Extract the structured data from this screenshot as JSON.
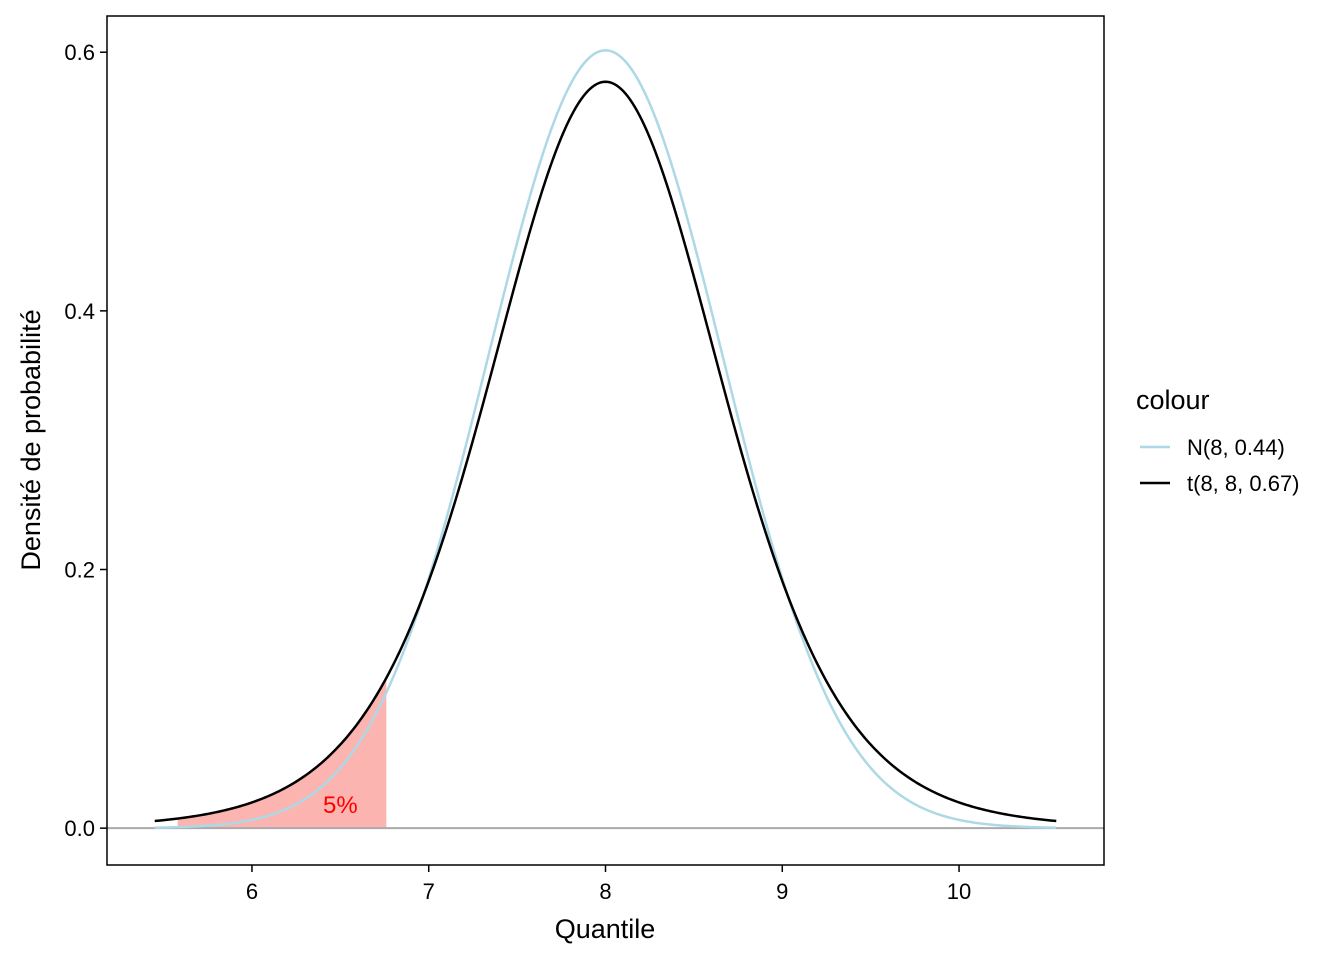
{
  "chart_data": {
    "type": "line",
    "xlabel": "Quantile",
    "ylabel": "Densité de probabilité",
    "xlim": [
      5.18,
      10.82
    ],
    "ylim": [
      -0.0285,
      0.628
    ],
    "x_ticks": [
      "6",
      "7",
      "8",
      "9",
      "10"
    ],
    "x_tick_values": [
      6,
      7,
      8,
      9,
      10
    ],
    "y_ticks": [
      "0.0",
      "0.2",
      "0.4",
      "0.6"
    ],
    "y_tick_values": [
      0.0,
      0.2,
      0.4,
      0.6
    ],
    "grid": false,
    "legend": {
      "title": "colour",
      "position": "right",
      "entries": [
        "N(8, 0.44)",
        "t(8, 8, 0.67)"
      ]
    },
    "series": [
      {
        "name": "N(8, 0.44)",
        "color": "#ADD8E6",
        "distribution": "normal",
        "mean": 8,
        "sd": 0.6633,
        "x_range": [
          5.45,
          10.55
        ],
        "x": [
          5.5,
          5.75,
          6.0,
          6.25,
          6.5,
          6.75,
          7.0,
          7.25,
          7.5,
          7.75,
          8.0,
          8.25,
          8.5,
          8.75,
          9.0,
          9.25,
          9.5,
          9.75,
          10.0,
          10.25,
          10.5
        ],
        "y": [
          0.0052,
          0.0095,
          0.0159,
          0.0283,
          0.0464,
          0.1015,
          0.189,
          0.308,
          0.452,
          0.554,
          0.601,
          0.554,
          0.452,
          0.308,
          0.189,
          0.1015,
          0.0464,
          0.0283,
          0.0159,
          0.0095,
          0.0052
        ]
      },
      {
        "name": "t(8, 8, 0.67)",
        "color": "#000000",
        "distribution": "student_t",
        "df": 8,
        "location": 8,
        "scale": 0.67,
        "x_range": [
          5.45,
          10.55
        ],
        "x": [
          5.5,
          5.75,
          6.0,
          6.25,
          6.5,
          6.75,
          7.0,
          7.25,
          7.5,
          7.75,
          8.0,
          8.25,
          8.5,
          8.75,
          9.0,
          9.25,
          9.5,
          9.75,
          10.0,
          10.25,
          10.5
        ],
        "y": [
          0.0067,
          0.0123,
          0.0229,
          0.0421,
          0.0759,
          0.125,
          0.193,
          0.295,
          0.416,
          0.534,
          0.582,
          0.534,
          0.416,
          0.295,
          0.193,
          0.125,
          0.0759,
          0.0421,
          0.0229,
          0.0123,
          0.0067
        ]
      }
    ],
    "shaded_region": {
      "series": "t(8, 8, 0.67)",
      "x_from": 5.58,
      "x_to": 6.76,
      "color": "#F8766D",
      "opacity": 0.55,
      "label": "5%",
      "label_x": 6.5,
      "label_y": 0.018,
      "label_color": "#FF0000"
    },
    "hline": {
      "y": 0.0,
      "color": "#AAAAAA"
    }
  }
}
